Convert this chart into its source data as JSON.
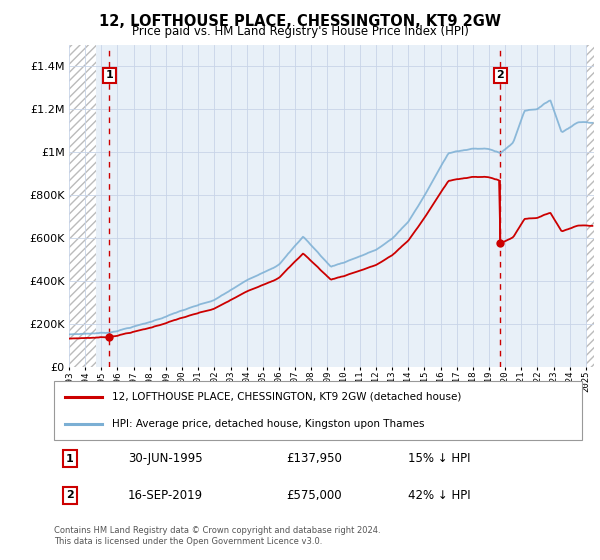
{
  "title": "12, LOFTHOUSE PLACE, CHESSINGTON, KT9 2GW",
  "subtitle": "Price paid vs. HM Land Registry's House Price Index (HPI)",
  "legend_line1": "12, LOFTHOUSE PLACE, CHESSINGTON, KT9 2GW (detached house)",
  "legend_line2": "HPI: Average price, detached house, Kingston upon Thames",
  "annotation1_date": "30-JUN-1995",
  "annotation1_price": "£137,950",
  "annotation1_hpi": "15% ↓ HPI",
  "annotation2_date": "16-SEP-2019",
  "annotation2_price": "£575,000",
  "annotation2_hpi": "42% ↓ HPI",
  "footer": "Contains HM Land Registry data © Crown copyright and database right 2024.\nThis data is licensed under the Open Government Licence v3.0.",
  "red_color": "#cc0000",
  "blue_color": "#7bafd4",
  "hatch_color": "#bbbbbb",
  "grid_color": "#c8d4e8",
  "background_color": "#dce8f0",
  "plot_bg": "#e8f0f8",
  "ylim": [
    0,
    1500000
  ],
  "xlim_start": 1993.0,
  "xlim_end": 2025.5,
  "sale1_year": 1995.5,
  "sale1_price": 137950,
  "sale2_year": 2019.71,
  "sale2_price": 575000,
  "hatch_left_end": 1994.7,
  "hatch_right_start": 2025.0
}
